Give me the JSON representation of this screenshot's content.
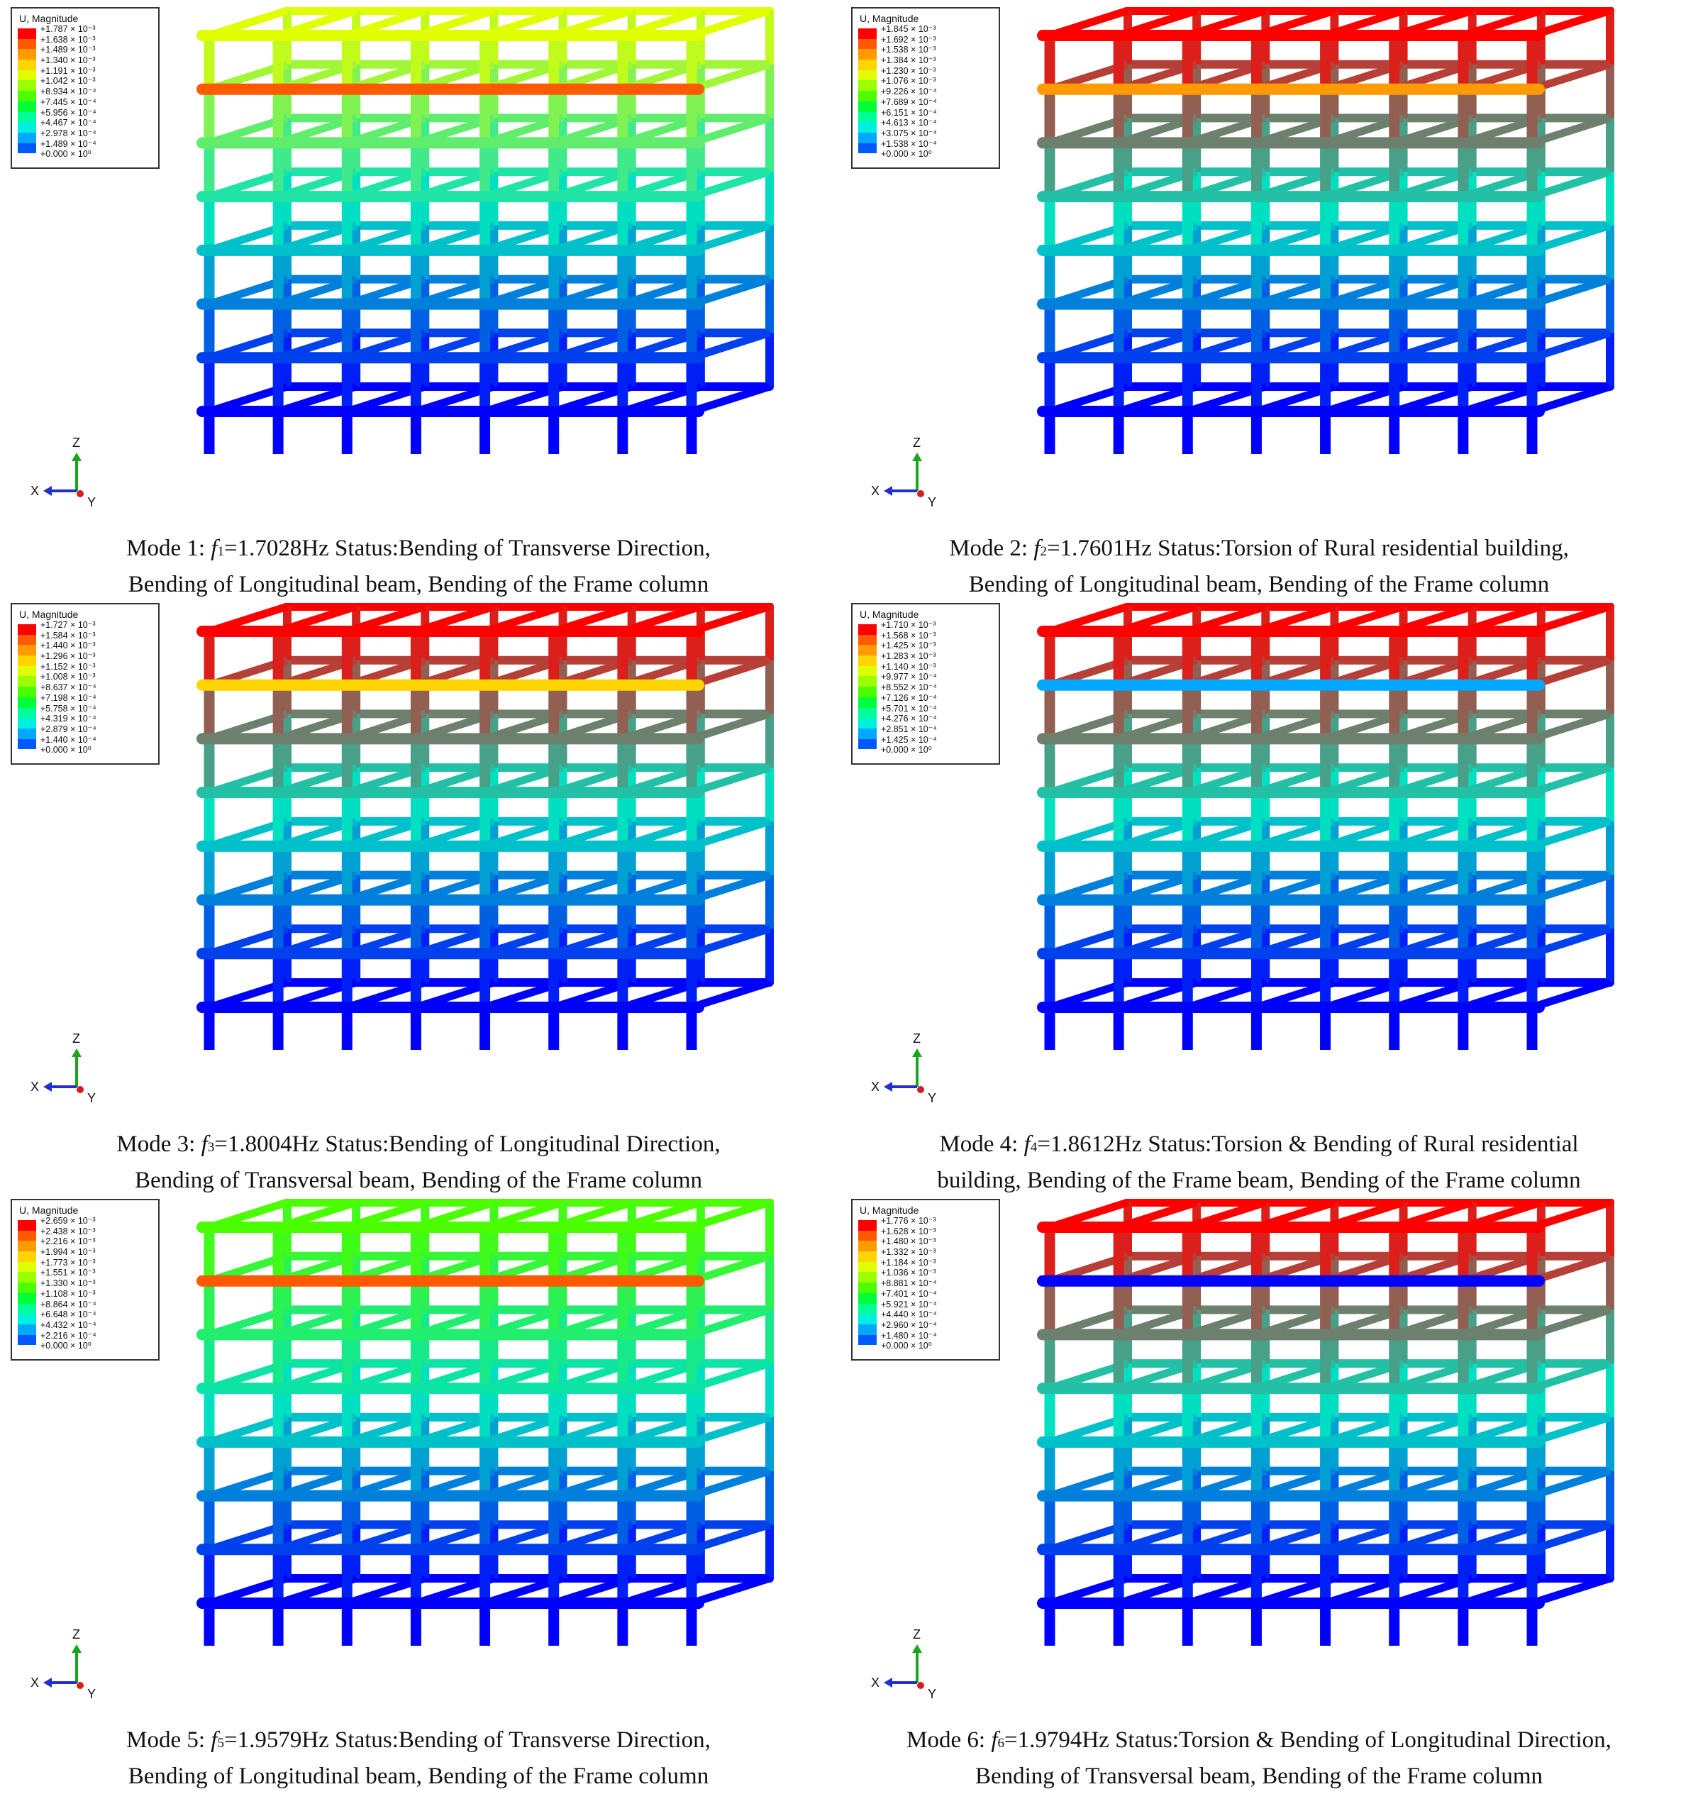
{
  "legend_title": "U, Magnitude",
  "legend_colors": [
    "#ff0000",
    "#ff5a00",
    "#ff9a00",
    "#ffd400",
    "#e0ff00",
    "#9aff00",
    "#4cff00",
    "#00ff3a",
    "#00ff9a",
    "#00f0e0",
    "#00a8ff",
    "#0058ff",
    "#0000ff"
  ],
  "axis_labels": {
    "x": "X",
    "y": "Y",
    "z": "Z"
  },
  "panels": [
    {
      "legend": [
        "+1.787 × 10⁻³",
        "+1.638 × 10⁻³",
        "+1.489 × 10⁻³",
        "+1.340 × 10⁻³",
        "+1.191 × 10⁻³",
        "+1.042 × 10⁻³",
        "+8.934 × 10⁻⁴",
        "+7.445 × 10⁻⁴",
        "+5.956 × 10⁻⁴",
        "+4.467 × 10⁻⁴",
        "+2.978 × 10⁻⁴",
        "+1.489 × 10⁻⁴",
        "+0.000 × 10⁰"
      ],
      "caption_prefix": "Mode 1: ",
      "freq_sub": "1",
      "caption_rest": "=1.7028Hz   Status:Bending of Transverse Direction,",
      "caption_line2": "Bending of Longitudinal beam, Bending of the Frame column",
      "top_color": "#e0ff00",
      "highlight_color": "#ff5a00"
    },
    {
      "legend": [
        "+1.845 × 10⁻³",
        "+1.692 × 10⁻³",
        "+1.538 × 10⁻³",
        "+1.384 × 10⁻³",
        "+1.230 × 10⁻³",
        "+1.076 × 10⁻³",
        "+9.226 × 10⁻⁴",
        "+7.689 × 10⁻⁴",
        "+6.151 × 10⁻⁴",
        "+4.613 × 10⁻⁴",
        "+3.075 × 10⁻⁴",
        "+1.538 × 10⁻⁴",
        "+0.000 × 10⁰"
      ],
      "caption_prefix": "Mode 2: ",
      "freq_sub": "2",
      "caption_rest": "=1.7601Hz   Status:Torsion of Rural residential building,",
      "caption_line2": "Bending of Longitudinal beam, Bending of the Frame column",
      "top_color": "#ff0000",
      "highlight_color": "#ff9a00"
    },
    {
      "legend": [
        "+1.727 × 10⁻³",
        "+1.584 × 10⁻³",
        "+1.440 × 10⁻³",
        "+1.296 × 10⁻³",
        "+1.152 × 10⁻³",
        "+1.008 × 10⁻³",
        "+8.637 × 10⁻⁴",
        "+7.198 × 10⁻⁴",
        "+5.758 × 10⁻⁴",
        "+4.319 × 10⁻⁴",
        "+2.879 × 10⁻⁴",
        "+1.440 × 10⁻⁴",
        "+0.000 × 10⁰"
      ],
      "caption_prefix": "Mode 3: ",
      "freq_sub": "3",
      "caption_rest": "=1.8004Hz   Status:Bending of Longitudinal Direction,",
      "caption_line2": "Bending of Transversal beam, Bending of the Frame column",
      "top_color": "#ff0000",
      "highlight_color": "#ffd400"
    },
    {
      "legend": [
        "+1.710 × 10⁻³",
        "+1.568 × 10⁻³",
        "+1.425 × 10⁻³",
        "+1.283 × 10⁻³",
        "+1.140 × 10⁻³",
        "+9.977 × 10⁻⁴",
        "+8.552 × 10⁻⁴",
        "+7.126 × 10⁻⁴",
        "+5.701 × 10⁻⁴",
        "+4.276 × 10⁻⁴",
        "+2.851 × 10⁻⁴",
        "+1.425 × 10⁻⁴",
        "+0.000 × 10⁰"
      ],
      "caption_prefix": "Mode 4: ",
      "freq_sub": "4",
      "caption_rest": "=1.8612Hz   Status:Torsion & Bending of Rural residential",
      "caption_line2": "building, Bending of the Frame beam, Bending of the Frame column",
      "top_color": "#ff0000",
      "highlight_color": "#00a8ff"
    },
    {
      "legend": [
        "+2.659 × 10⁻³",
        "+2.438 × 10⁻³",
        "+2.216 × 10⁻³",
        "+1.994 × 10⁻³",
        "+1.773 × 10⁻³",
        "+1.551 × 10⁻³",
        "+1.330 × 10⁻³",
        "+1.108 × 10⁻³",
        "+8.864 × 10⁻⁴",
        "+6.648 × 10⁻⁴",
        "+4.432 × 10⁻⁴",
        "+2.216 × 10⁻⁴",
        "+0.000 × 10⁰"
      ],
      "caption_prefix": "Mode 5: ",
      "freq_sub": "5",
      "caption_rest": "=1.9579Hz   Status:Bending of Transverse Direction,",
      "caption_line2": "Bending of Longitudinal beam, Bending of the Frame column",
      "top_color": "#4cff00",
      "highlight_color": "#ff5a00"
    },
    {
      "legend": [
        "+1.776 × 10⁻³",
        "+1.628 × 10⁻³",
        "+1.480 × 10⁻³",
        "+1.332 × 10⁻³",
        "+1.184 × 10⁻³",
        "+1.036 × 10⁻³",
        "+8.881 × 10⁻⁴",
        "+7.401 × 10⁻⁴",
        "+5.921 × 10⁻⁴",
        "+4.440 × 10⁻⁴",
        "+2.960 × 10⁻⁴",
        "+1.480 × 10⁻⁴",
        "+0.000 × 10⁰"
      ],
      "caption_prefix": "Mode 6: ",
      "freq_sub": "6",
      "caption_rest": "=1.9794Hz   Status:Torsion & Bending of Longitudinal Direction,",
      "caption_line2": "Bending of Transversal beam, Bending of the Frame column",
      "top_color": "#ff0000",
      "highlight_color": "#0000ff"
    }
  ]
}
